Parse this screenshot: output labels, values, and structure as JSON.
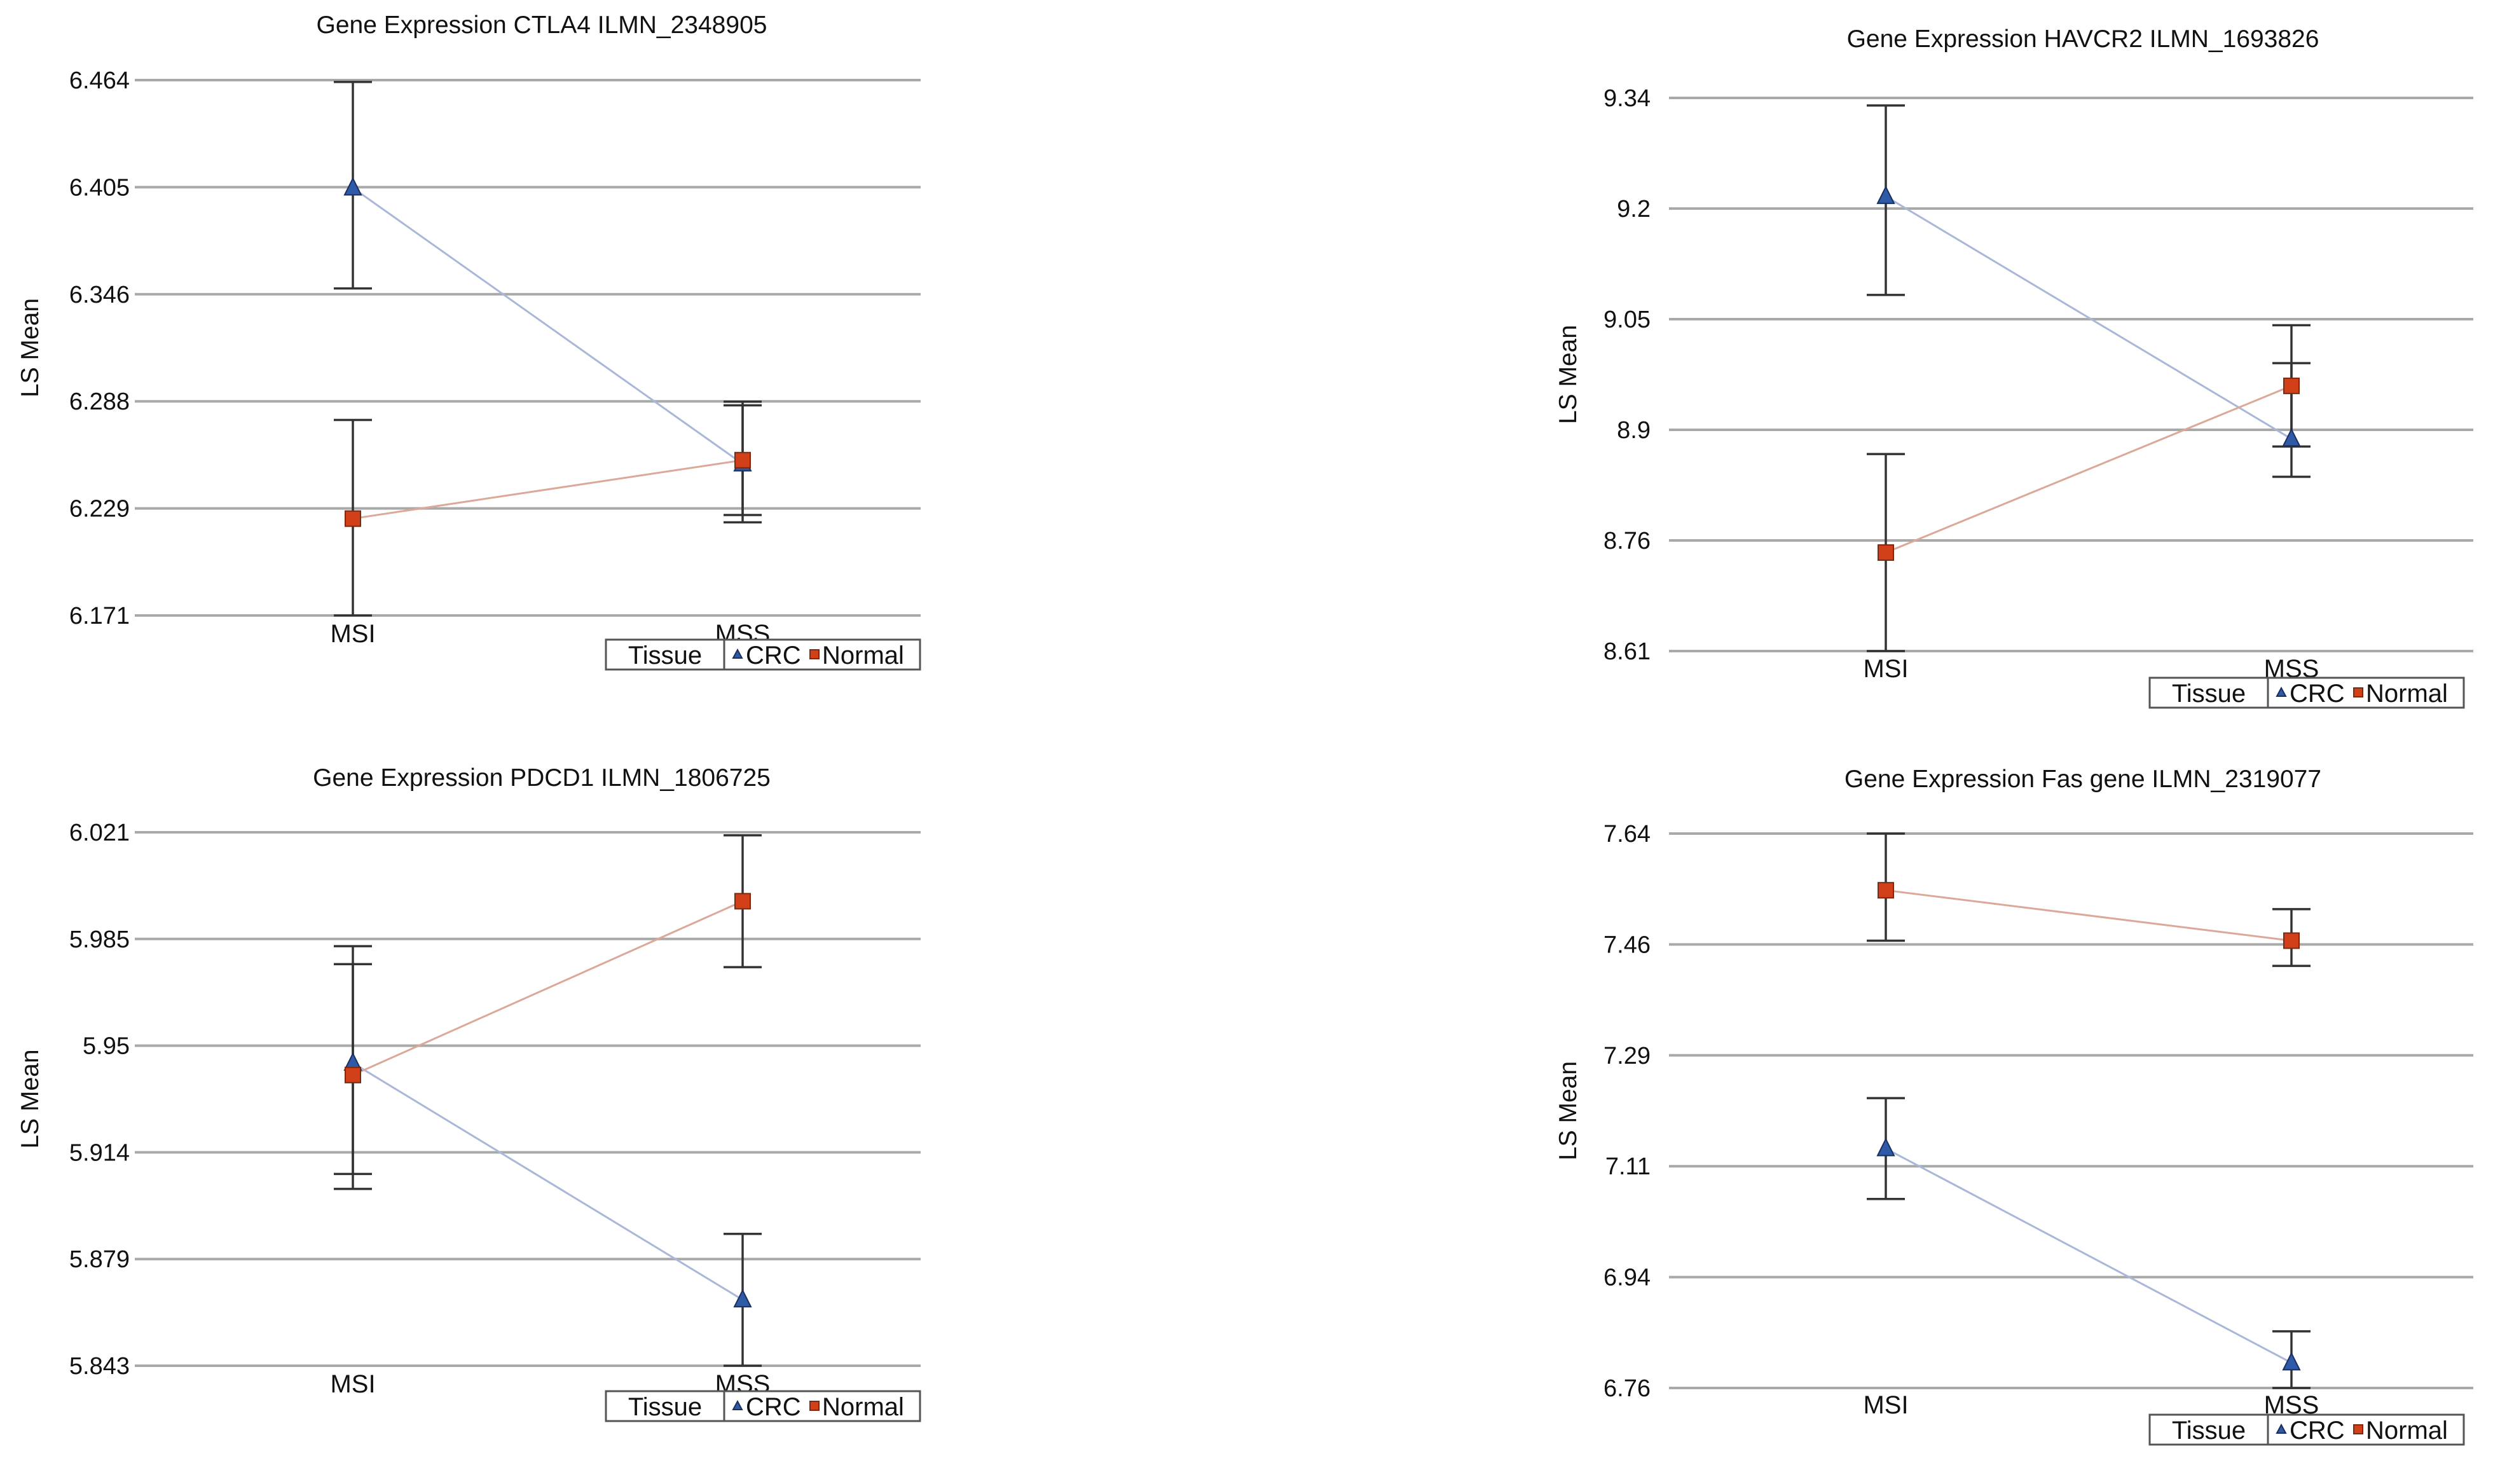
{
  "chart_data": [
    {
      "type": "line",
      "title": "Gene Expression CTLA4 ILMN_2348905",
      "xlabel": "",
      "ylabel": "LS Mean",
      "categories": [
        "MSI",
        "MSS"
      ],
      "ylim": [
        6.171,
        6.464
      ],
      "yticks": [
        "6.464",
        "6.405",
        "6.346",
        "6.288",
        "6.229",
        "6.171"
      ],
      "grid": true,
      "legend": {
        "title": "Tissue",
        "position": "bottom-right"
      },
      "series": [
        {
          "name": "CRC",
          "marker": "triangle",
          "color": "#2f5aa8",
          "line_color": "#aab7d9",
          "values": [
            6.405,
            6.254
          ],
          "lower": [
            6.35,
            6.222
          ],
          "upper": [
            6.463,
            6.286
          ]
        },
        {
          "name": "Normal",
          "marker": "square",
          "color": "#d2401a",
          "line_color": "#dba899",
          "values": [
            6.224,
            6.256
          ],
          "lower": [
            6.171,
            6.226
          ],
          "upper": [
            6.278,
            6.288
          ]
        }
      ]
    },
    {
      "type": "line",
      "title": "Gene Expression HAVCR2 ILMN_1693826",
      "xlabel": "",
      "ylabel": "LS Mean",
      "categories": [
        "MSI",
        "MSS"
      ],
      "ylim": [
        8.61,
        9.34
      ],
      "yticks": [
        "9.34",
        "9.2",
        "9.05",
        "8.9",
        "8.76",
        "8.61"
      ],
      "grid": true,
      "legend": {
        "title": "Tissue",
        "position": "bottom-right"
      },
      "series": [
        {
          "name": "CRC",
          "marker": "triangle",
          "color": "#2f5aa8",
          "line_color": "#aab7d9",
          "values": [
            9.21,
            8.89
          ],
          "lower": [
            9.08,
            8.84
          ],
          "upper": [
            9.33,
            8.99
          ]
        },
        {
          "name": "Normal",
          "marker": "square",
          "color": "#d2401a",
          "line_color": "#dba899",
          "values": [
            8.74,
            8.96
          ],
          "lower": [
            8.61,
            8.88
          ],
          "upper": [
            8.87,
            9.04
          ]
        }
      ]
    },
    {
      "type": "line",
      "title": "Gene Expression PDCD1 ILMN_1806725",
      "xlabel": "",
      "ylabel": "LS Mean",
      "categories": [
        "MSI",
        "MSS"
      ],
      "ylim": [
        5.843,
        6.021
      ],
      "yticks": [
        "6.021",
        "5.985",
        "5.95",
        "5.914",
        "5.879",
        "5.843"
      ],
      "grid": true,
      "legend": {
        "title": "Tissue",
        "position": "bottom-right"
      },
      "series": [
        {
          "name": "CRC",
          "marker": "triangle",
          "color": "#2f5aa8",
          "line_color": "#aab7d9",
          "values": [
            5.944,
            5.865
          ],
          "lower": [
            5.907,
            5.843
          ],
          "upper": [
            5.977,
            5.887
          ]
        },
        {
          "name": "Normal",
          "marker": "square",
          "color": "#d2401a",
          "line_color": "#dba899",
          "values": [
            5.94,
            5.998
          ],
          "lower": [
            5.902,
            5.976
          ],
          "upper": [
            5.983,
            6.02
          ]
        }
      ]
    },
    {
      "type": "line",
      "title": "Gene Expression Fas gene ILMN_2319077",
      "xlabel": "",
      "ylabel": "LS Mean",
      "categories": [
        "MSI",
        "MSS"
      ],
      "ylim": [
        6.76,
        7.64
      ],
      "yticks": [
        "7.64",
        "7.46",
        "7.29",
        "7.11",
        "6.94",
        "6.76"
      ],
      "grid": true,
      "legend": {
        "title": "Tissue",
        "position": "bottom-right"
      },
      "series": [
        {
          "name": "CRC",
          "marker": "triangle",
          "color": "#2f5aa8",
          "line_color": "#aab7d9",
          "values": [
            7.14,
            6.8
          ],
          "lower": [
            7.06,
            6.76
          ],
          "upper": [
            7.22,
            6.85
          ]
        },
        {
          "name": "Normal",
          "marker": "square",
          "color": "#d2401a",
          "line_color": "#dba899",
          "values": [
            7.55,
            7.47
          ],
          "lower": [
            7.47,
            7.43
          ],
          "upper": [
            7.64,
            7.52
          ]
        }
      ]
    }
  ]
}
